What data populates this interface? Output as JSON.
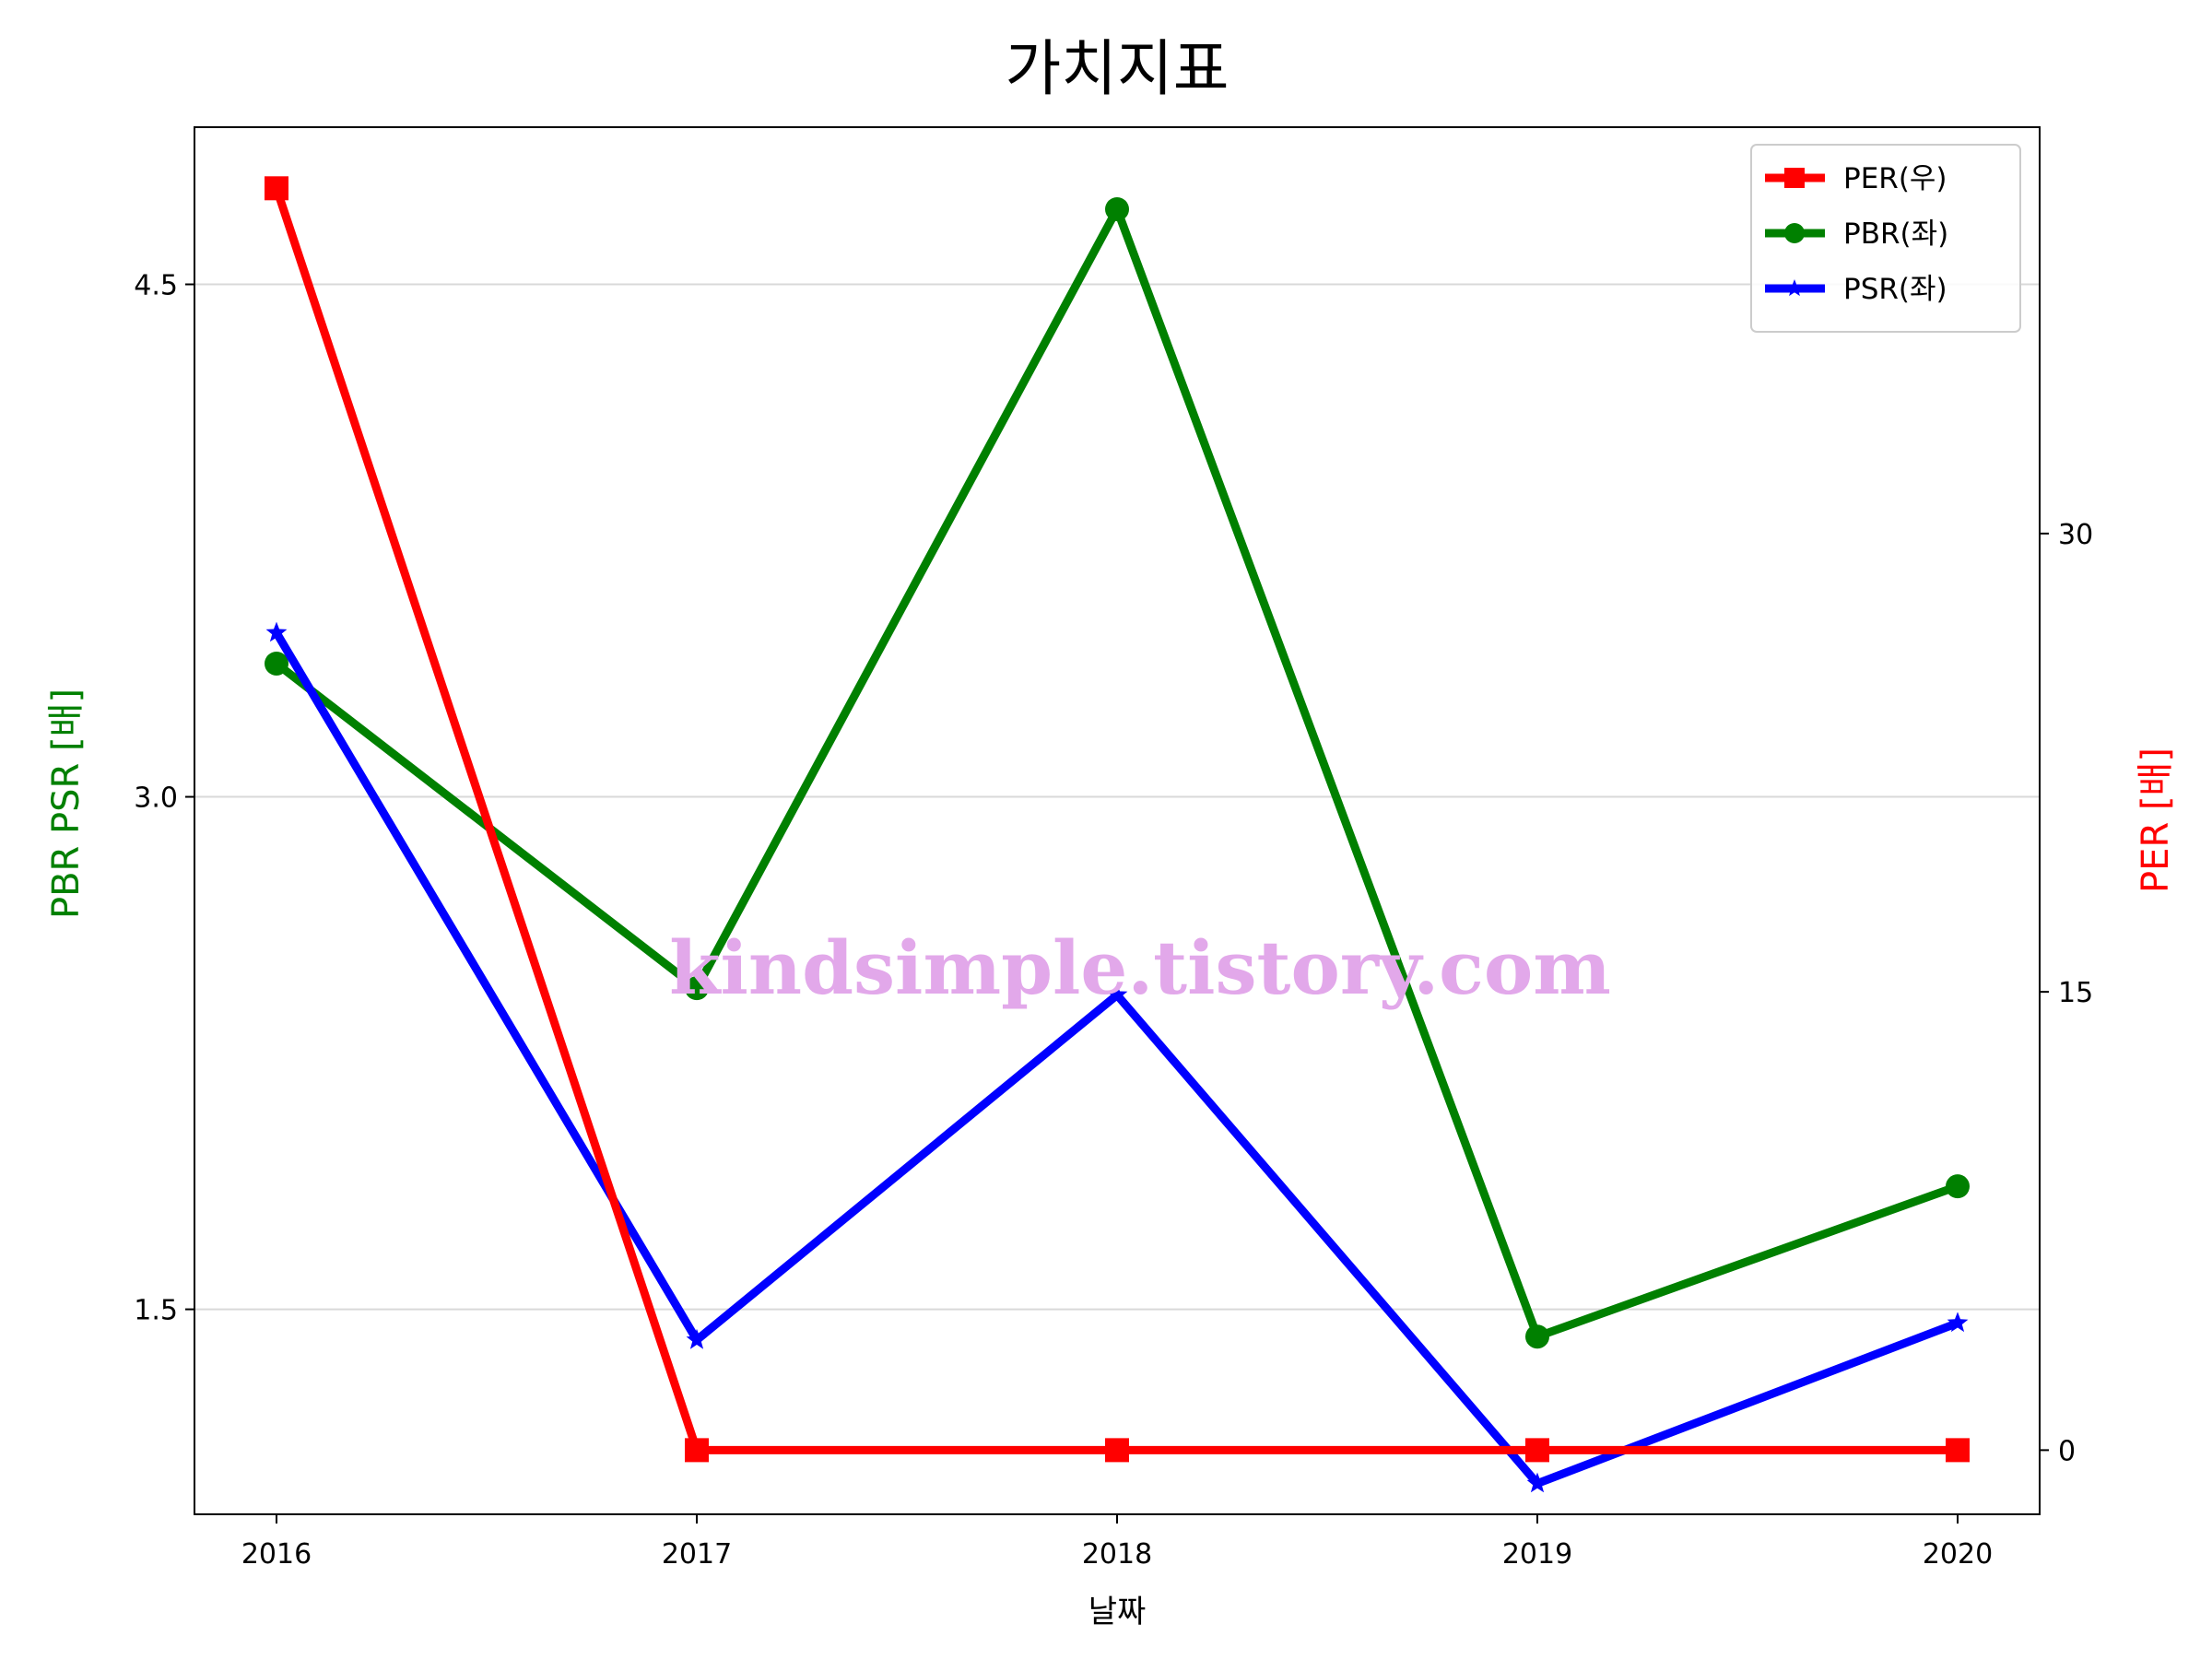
{
  "chart_data": {
    "type": "line",
    "title": "가치지표",
    "xlabel": "날짜",
    "ylabel_left": "PBR PSR [배]",
    "ylabel_right": "PER [배]",
    "categories": [
      "2016",
      "2017",
      "2018",
      "2019",
      "2020"
    ],
    "left_axis": {
      "ylim": [
        0.9,
        4.96
      ],
      "ticks": [
        "1.5",
        "3.0",
        "4.5"
      ],
      "tick_values": [
        1.5,
        3.0,
        4.5
      ],
      "label_color": "#008000",
      "grid": true
    },
    "right_axis": {
      "ylim": [
        -2.1,
        43.3
      ],
      "ticks": [
        "0",
        "15",
        "30"
      ],
      "tick_values": [
        0,
        15,
        30
      ],
      "label_color": "#ff0000"
    },
    "series": [
      {
        "name": "PER(우)",
        "axis": "right",
        "color": "#ff0000",
        "marker": "square",
        "values": [
          41.3,
          0,
          0,
          0,
          0
        ]
      },
      {
        "name": "PBR(좌)",
        "axis": "left",
        "color": "#008000",
        "marker": "circle",
        "values": [
          3.39,
          2.44,
          4.72,
          1.42,
          1.86
        ]
      },
      {
        "name": "PSR(좌)",
        "axis": "left",
        "color": "#0000ff",
        "marker": "star",
        "values": [
          3.48,
          1.41,
          2.42,
          0.99,
          1.46
        ]
      }
    ],
    "legend": "top-right"
  },
  "watermark": {
    "text": "kindsimple.tistory.com",
    "color": "#e2a8ea"
  }
}
